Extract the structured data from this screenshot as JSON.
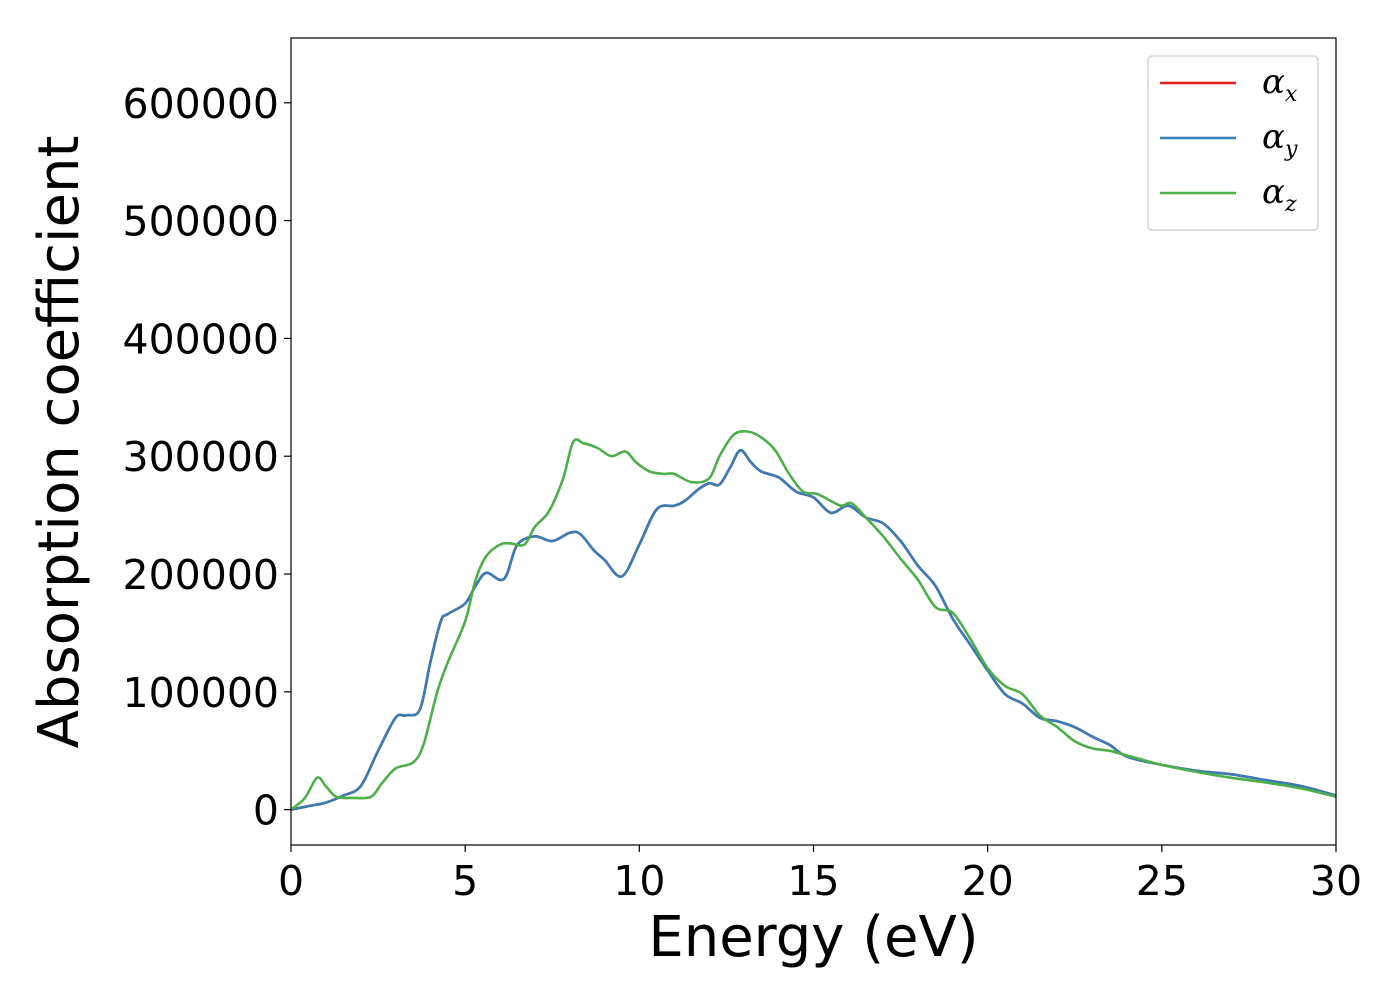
{
  "chart_data": {
    "type": "line",
    "xlabel": "Energy (eV)",
    "ylabel": "Absorption coefficient",
    "xlim": [
      0,
      30
    ],
    "ylim": [
      -30000,
      655000
    ],
    "xticks": [
      0,
      5,
      10,
      15,
      20,
      25,
      30
    ],
    "yticks": [
      0,
      100000,
      200000,
      300000,
      400000,
      500000,
      600000
    ],
    "grid": false,
    "legend_position": "top-right",
    "series": [
      {
        "name": "α_x",
        "symbol": "α",
        "sub": "x",
        "color": "#e41a1c",
        "x": [
          0,
          0.5,
          1,
          1.5,
          2,
          2.5,
          3,
          3.3,
          3.7,
          4,
          4.3,
          4.5,
          5,
          5.3,
          5.6,
          6,
          6.2,
          6.5,
          7,
          7.5,
          8,
          8.3,
          8.7,
          9,
          9.5,
          10,
          10.5,
          11,
          11.3,
          11.7,
          12,
          12.3,
          12.6,
          12.9,
          13.2,
          13.5,
          14,
          14.5,
          15,
          15.5,
          16,
          16.5,
          17,
          17.5,
          18,
          18.5,
          19,
          19.5,
          20,
          20.5,
          21,
          21.5,
          22,
          22.5,
          23,
          23.5,
          24,
          25,
          26,
          27,
          28,
          29,
          30
        ],
        "y": [
          0,
          3000,
          6000,
          12000,
          20000,
          50000,
          78000,
          80000,
          85000,
          125000,
          160000,
          166000,
          175000,
          190000,
          201000,
          195000,
          200000,
          225000,
          232000,
          228000,
          235000,
          234000,
          220000,
          212000,
          198000,
          225000,
          255000,
          258000,
          262000,
          272000,
          277000,
          276000,
          290000,
          305000,
          295000,
          287000,
          282000,
          270000,
          265000,
          252000,
          258000,
          248000,
          243000,
          228000,
          207000,
          190000,
          162000,
          140000,
          118000,
          98000,
          90000,
          78000,
          75000,
          70000,
          62000,
          55000,
          45000,
          38000,
          33000,
          30000,
          25000,
          20000,
          12000
        ]
      },
      {
        "name": "α_y",
        "symbol": "α",
        "sub": "y",
        "color": "#377eb8",
        "x": [
          0,
          0.5,
          1,
          1.5,
          2,
          2.5,
          3,
          3.3,
          3.7,
          4,
          4.3,
          4.5,
          5,
          5.3,
          5.6,
          6,
          6.2,
          6.5,
          7,
          7.5,
          8,
          8.3,
          8.7,
          9,
          9.5,
          10,
          10.5,
          11,
          11.3,
          11.7,
          12,
          12.3,
          12.6,
          12.9,
          13.2,
          13.5,
          14,
          14.5,
          15,
          15.5,
          16,
          16.5,
          17,
          17.5,
          18,
          18.5,
          19,
          19.5,
          20,
          20.5,
          21,
          21.5,
          22,
          22.5,
          23,
          23.5,
          24,
          25,
          26,
          27,
          28,
          29,
          30
        ],
        "y": [
          0,
          3000,
          6000,
          12000,
          20000,
          50000,
          78000,
          80000,
          85000,
          125000,
          160000,
          166000,
          175000,
          190000,
          201000,
          195000,
          200000,
          225000,
          232000,
          228000,
          235000,
          234000,
          220000,
          212000,
          198000,
          225000,
          255000,
          258000,
          262000,
          272000,
          277000,
          276000,
          290000,
          305000,
          295000,
          287000,
          282000,
          270000,
          265000,
          252000,
          258000,
          248000,
          243000,
          228000,
          207000,
          190000,
          162000,
          140000,
          118000,
          98000,
          90000,
          78000,
          75000,
          70000,
          62000,
          55000,
          45000,
          38000,
          33000,
          30000,
          25000,
          20000,
          12000
        ]
      },
      {
        "name": "α_z",
        "symbol": "α",
        "sub": "z",
        "color": "#4daf4a",
        "x": [
          0,
          0.4,
          0.75,
          1,
          1.3,
          1.8,
          2.3,
          2.6,
          3,
          3.5,
          3.8,
          4.2,
          4.5,
          5,
          5.3,
          5.6,
          6,
          6.3,
          6.7,
          7,
          7.4,
          7.8,
          8.1,
          8.4,
          8.8,
          9.2,
          9.6,
          9.9,
          10.3,
          10.7,
          11,
          11.5,
          12,
          12.3,
          12.7,
          13.1,
          13.5,
          13.9,
          14.3,
          14.7,
          15.1,
          15.5,
          15.8,
          16.1,
          16.5,
          17,
          17.5,
          18,
          18.5,
          19,
          19.5,
          20,
          20.5,
          21,
          21.5,
          22,
          22.5,
          23,
          23.5,
          24,
          25,
          26,
          27,
          28,
          29,
          30
        ],
        "y": [
          0,
          10000,
          27000,
          20000,
          11000,
          10000,
          11000,
          22000,
          35000,
          40000,
          55000,
          100000,
          125000,
          160000,
          195000,
          215000,
          225000,
          226000,
          225000,
          240000,
          253000,
          280000,
          312000,
          311000,
          307000,
          300000,
          304000,
          295000,
          287000,
          285000,
          285000,
          278000,
          281000,
          300000,
          318000,
          321000,
          316000,
          305000,
          285000,
          270000,
          268000,
          262000,
          258000,
          260000,
          248000,
          232000,
          213000,
          195000,
          172000,
          167000,
          145000,
          120000,
          105000,
          98000,
          80000,
          70000,
          58000,
          52000,
          50000,
          46000,
          38000,
          32000,
          27000,
          23000,
          18000,
          11000
        ]
      }
    ]
  }
}
